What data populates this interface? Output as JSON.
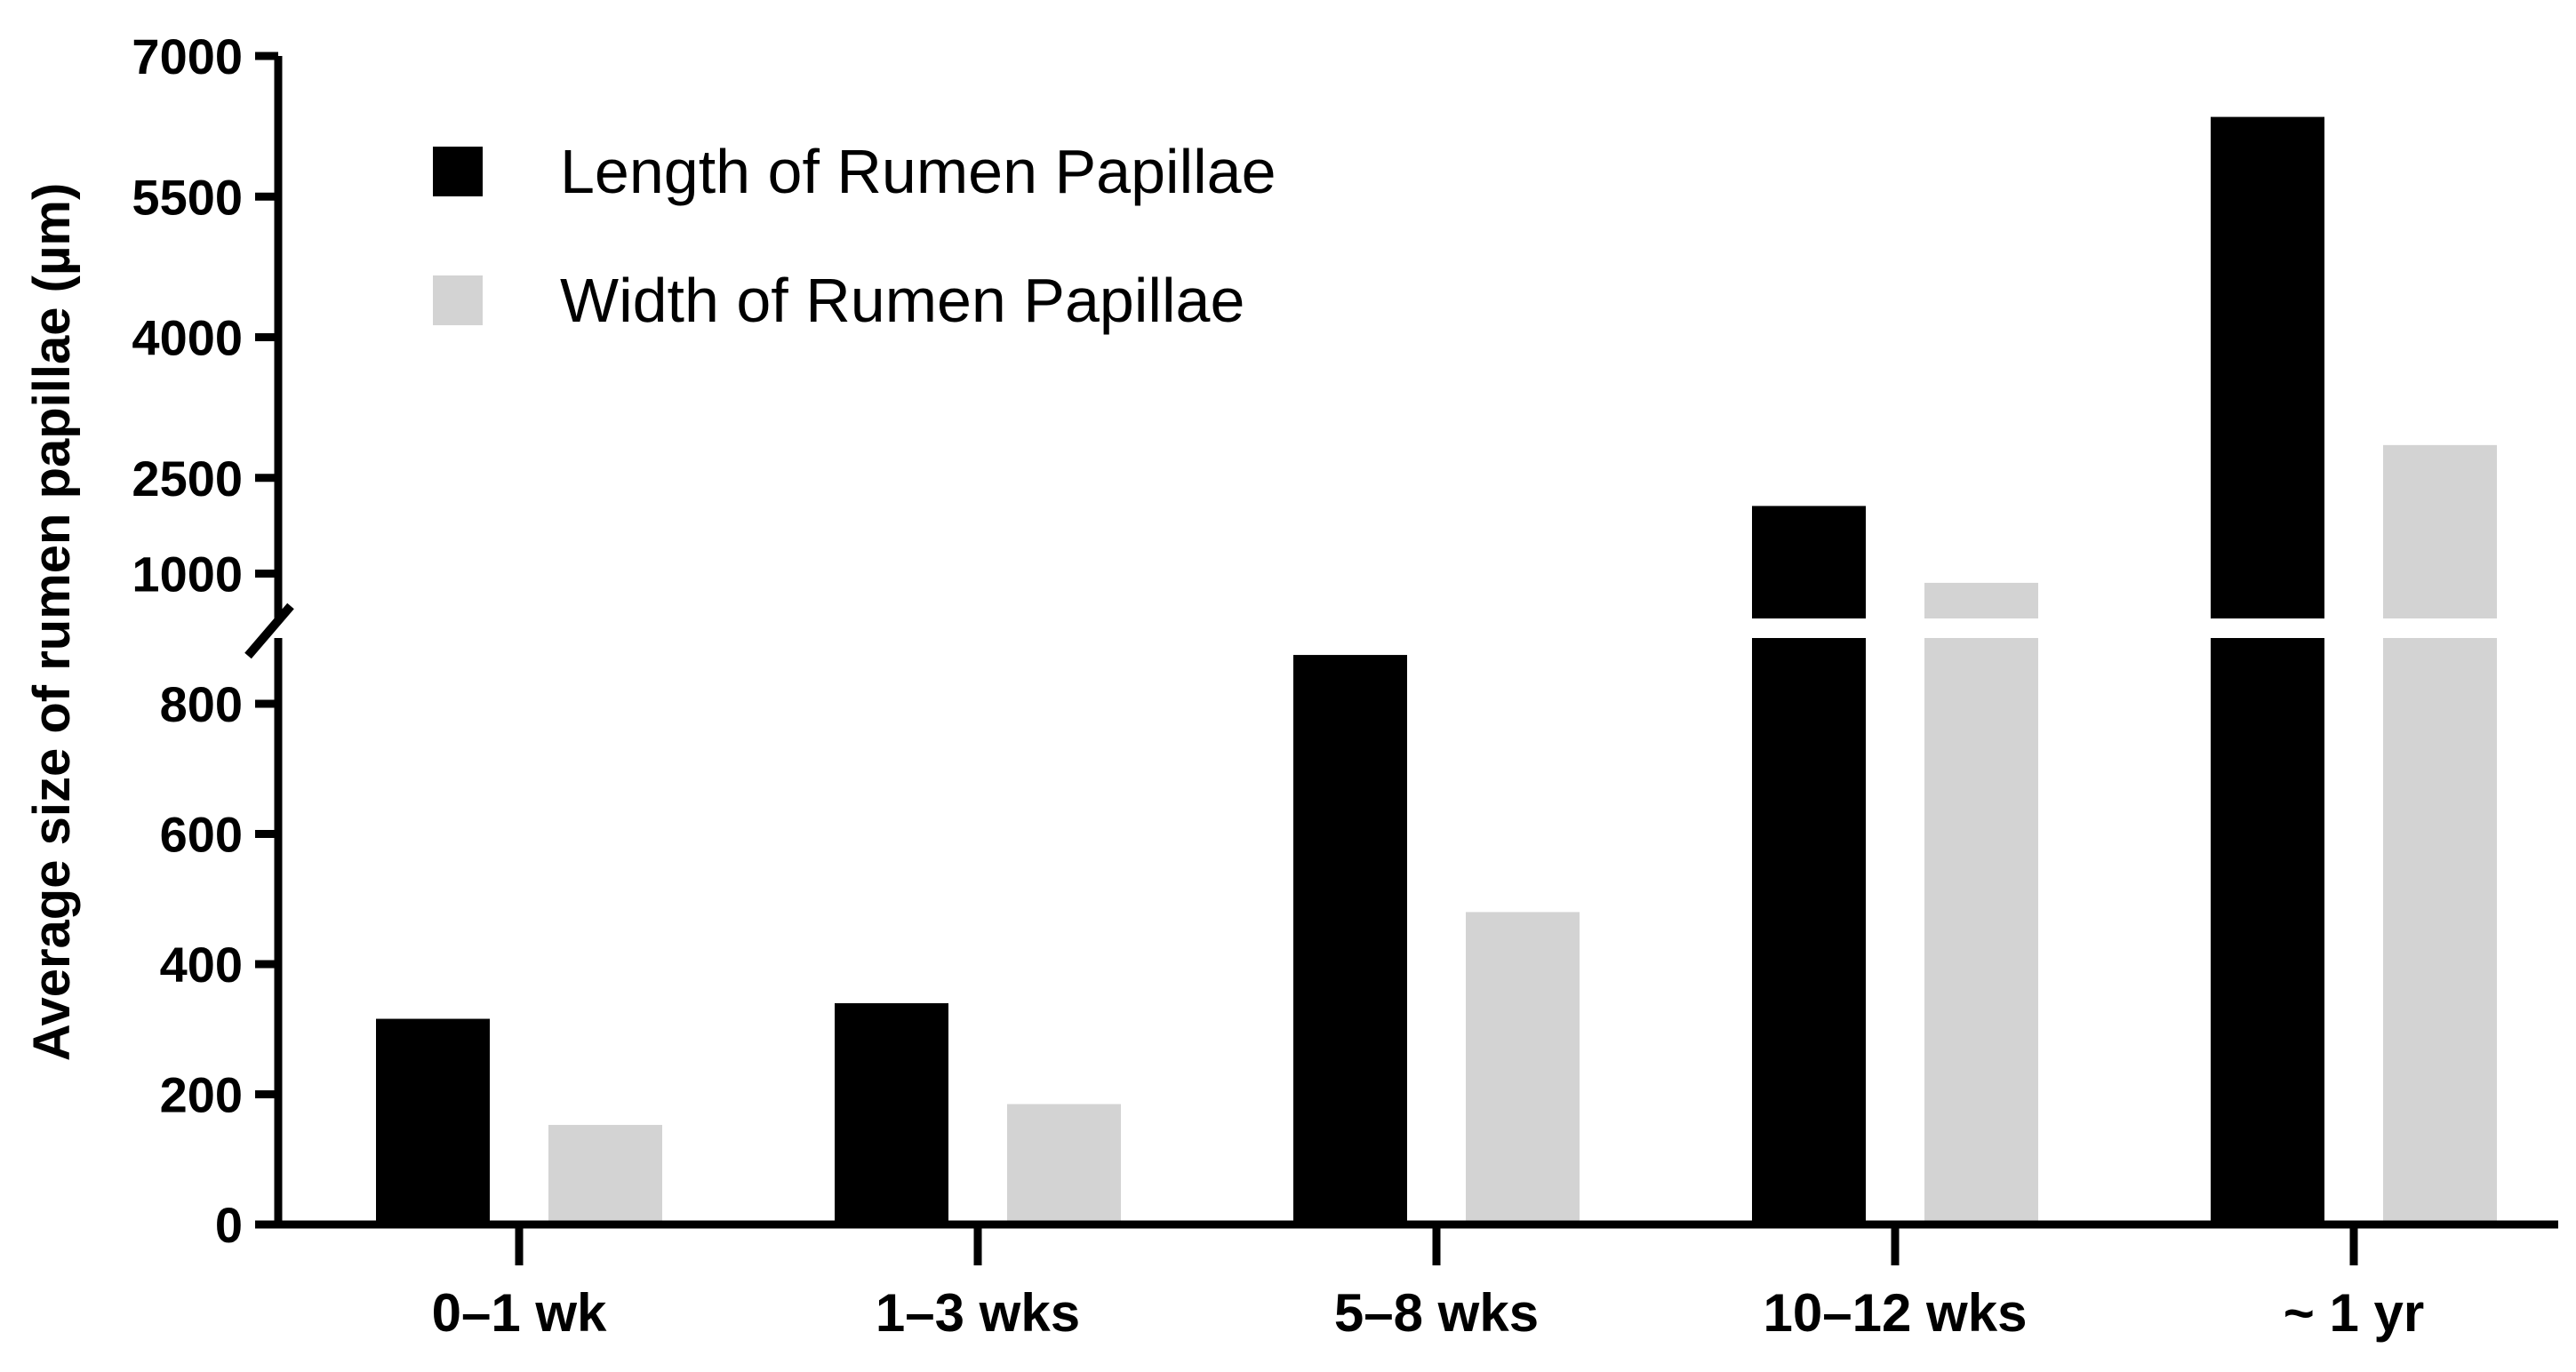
{
  "chart_data": {
    "type": "bar",
    "ylabel": "Average size of rumen papillae (µm)",
    "xlabel": "",
    "categories": [
      "0–1 wk",
      "1–3 wks",
      "5–8 wks",
      "10–12 wks",
      "~ 1 yr"
    ],
    "series": [
      {
        "name": "Length of Rumen Papillae",
        "color": "#000000",
        "values": [
          316,
          340,
          875,
          2200,
          6350
        ]
      },
      {
        "name": "Width of Rumen Papillae",
        "color": "#d3d3d3",
        "values": [
          153,
          185,
          480,
          1380,
          2850
        ]
      }
    ],
    "y_axis": {
      "broken": true,
      "lower_segment": {
        "range": [
          0,
          1000
        ],
        "ticks": [
          "0",
          "200",
          "400",
          "600",
          "800"
        ]
      },
      "upper_segment": {
        "range": [
          1000,
          7000
        ],
        "ticks": [
          "1000",
          "2500",
          "4000",
          "5500",
          "7000"
        ]
      }
    },
    "legend_position": "top-left",
    "grid": false
  }
}
